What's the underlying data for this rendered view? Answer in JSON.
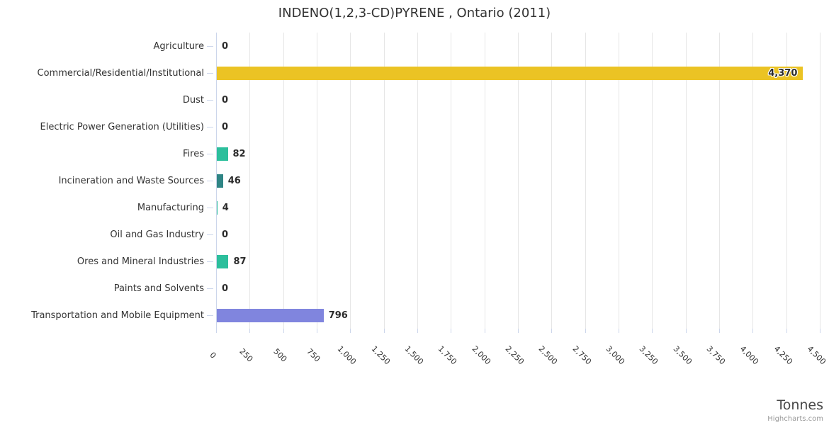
{
  "chart_data": {
    "type": "bar",
    "title": "INDENO(1,2,3-CD)PYRENE , Ontario (2011)",
    "xlabel": "Tonnes",
    "categories": [
      "Agriculture",
      "Commercial/Residential/Institutional",
      "Dust",
      "Electric Power Generation (Utilities)",
      "Fires",
      "Incineration and Waste Sources",
      "Manufacturing",
      "Oil and Gas Industry",
      "Ores and Mineral Industries",
      "Paints and Solvents",
      "Transportation and Mobile Equipment"
    ],
    "values": [
      0,
      4370,
      0,
      0,
      82,
      46,
      4,
      0,
      87,
      0,
      796
    ],
    "value_labels": [
      "0",
      "4,370",
      "0",
      "0",
      "82",
      "46",
      "4",
      "0",
      "87",
      "0",
      "796"
    ],
    "bar_colors": [
      "#2cbf9c",
      "#ebc324",
      "#2cbf9c",
      "#2cbf9c",
      "#2cbf9c",
      "#2f8585",
      "#2cbf9c",
      "#2cbf9c",
      "#2cbf9c",
      "#2cbf9c",
      "#8085de"
    ],
    "xlim": [
      0,
      4500
    ],
    "x_tick_step": 250,
    "x_tick_labels": [
      "0",
      "250",
      "500",
      "750",
      "1,000",
      "1,250",
      "1,500",
      "1,750",
      "2,000",
      "2,250",
      "2,500",
      "2,750",
      "3,000",
      "3,250",
      "3,500",
      "3,750",
      "4,000",
      "4,250",
      "4,500"
    ],
    "x_tick_rotation_deg": 45,
    "grid": "vertical-only",
    "legend": "none",
    "credit": "Highcharts.com"
  }
}
